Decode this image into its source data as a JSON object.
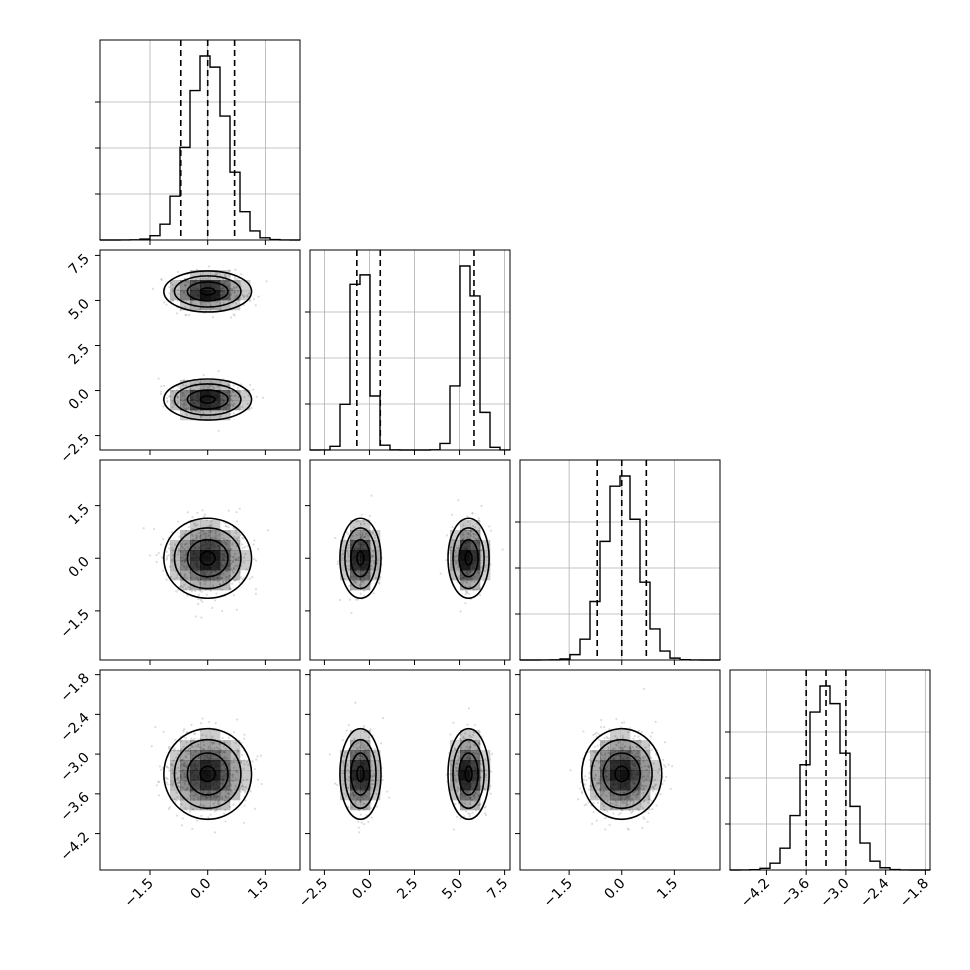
{
  "chart_data": {
    "type": "corner",
    "title": "",
    "variables": [
      {
        "index": 0,
        "axis_range": [
          -2.8,
          2.4
        ],
        "ticks": [
          -1.5,
          0.0,
          1.5
        ],
        "tick_labels": [
          "−1.5",
          "0.0",
          "1.5"
        ],
        "quantiles": [
          -0.7,
          0.0,
          0.7
        ],
        "mixture": [
          {
            "mean": 0.0,
            "sd": 0.5,
            "weight": 1
          }
        ]
      },
      {
        "index": 1,
        "axis_range": [
          -3.3,
          7.8
        ],
        "ticks": [
          -2.5,
          0.0,
          2.5,
          5.0,
          7.5
        ],
        "tick_labels": [
          "−2.5",
          "0.0",
          "2.5",
          "5.0",
          "7.5"
        ],
        "quantiles": [
          -0.7,
          0.6,
          5.8
        ],
        "mixture": [
          {
            "mean": -0.5,
            "sd": 0.5,
            "weight": 0.5
          },
          {
            "mean": 5.5,
            "sd": 0.5,
            "weight": 0.5
          }
        ]
      },
      {
        "index": 2,
        "axis_range": [
          -2.9,
          2.8
        ],
        "ticks": [
          -1.5,
          0.0,
          1.5
        ],
        "tick_labels": [
          "−1.5",
          "0.0",
          "1.5"
        ],
        "quantiles": [
          -0.7,
          0.0,
          0.7
        ],
        "mixture": [
          {
            "mean": 0.0,
            "sd": 0.5,
            "weight": 1
          }
        ]
      },
      {
        "index": 3,
        "axis_range": [
          -4.75,
          -1.73
        ],
        "ticks": [
          -4.2,
          -3.6,
          -3.0,
          -2.4,
          -1.8
        ],
        "tick_labels": [
          "−4.2",
          "−3.6",
          "−3.0",
          "−2.4",
          "−1.8"
        ],
        "quantiles": [
          -3.6,
          -3.3,
          -3.0
        ],
        "mixture": [
          {
            "mean": -3.3,
            "sd": 0.3,
            "weight": 1
          }
        ]
      }
    ],
    "histogram": {
      "bins": 20,
      "style": "step"
    },
    "scatter_points": "light grey",
    "density_contours": 4,
    "grid": true
  }
}
